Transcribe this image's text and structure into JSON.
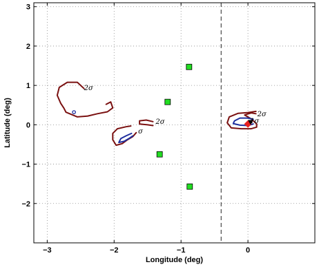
{
  "chart_data": {
    "type": "scatter",
    "title": "",
    "xlabel": "Longitude (deg)",
    "ylabel": "Latitude (deg)",
    "xlim": [
      -3.2,
      1.0
    ],
    "ylim": [
      -3.0,
      3.1
    ],
    "xticks": [
      -3,
      -2,
      -1,
      0
    ],
    "yticks": [
      -2,
      -1,
      0,
      1,
      2,
      3
    ],
    "tick_labels": {
      "x": [
        "−3",
        "−2",
        "−1",
        "0"
      ],
      "y": [
        "−2",
        "−1",
        "0",
        "1",
        "2",
        "3"
      ]
    },
    "grid": true,
    "grid_style": "dotted",
    "reference_line": {
      "x": -0.4,
      "style": "dashed",
      "color": "#555555"
    },
    "markers": {
      "squares": {
        "color": "#22dd22",
        "points": [
          {
            "x": -0.88,
            "y": 1.47
          },
          {
            "x": -1.2,
            "y": 0.58
          },
          {
            "x": -1.32,
            "y": -0.75
          },
          {
            "x": -0.87,
            "y": -1.57
          }
        ]
      },
      "circle": {
        "color": "#1f2f9e",
        "x": -2.6,
        "y": 0.32
      },
      "diamond": {
        "color": "#e82020",
        "x": 0.0,
        "y": 0.02
      },
      "triangle": {
        "color": "#000000",
        "x": 0.04,
        "y": 0.05
      }
    },
    "contours": [
      {
        "level": "2σ",
        "color": "#7a1010",
        "label": {
          "text": "2σ",
          "x": -2.45,
          "y": 0.88
        },
        "points": [
          [
            -2.45,
            0.92
          ],
          [
            -2.55,
            1.08
          ],
          [
            -2.7,
            1.08
          ],
          [
            -2.82,
            0.95
          ],
          [
            -2.85,
            0.75
          ],
          [
            -2.8,
            0.55
          ],
          [
            -2.75,
            0.42
          ],
          [
            -2.72,
            0.32
          ],
          [
            -2.55,
            0.2
          ],
          [
            -2.4,
            0.22
          ],
          [
            -2.25,
            0.28
          ],
          [
            -2.1,
            0.33
          ],
          [
            -2.02,
            0.43
          ],
          [
            -2.05,
            0.58
          ],
          [
            -2.12,
            0.52
          ]
        ]
      },
      {
        "level": "2σ",
        "color": "#7a1010",
        "label": null,
        "points": [
          [
            -1.75,
            -0.03
          ],
          [
            -1.82,
            -0.05
          ],
          [
            -1.95,
            -0.1
          ],
          [
            -2.02,
            -0.22
          ],
          [
            -2.02,
            -0.38
          ],
          [
            -1.97,
            -0.52
          ],
          [
            -1.88,
            -0.48
          ],
          [
            -1.8,
            -0.38
          ],
          [
            -1.72,
            -0.3
          ],
          [
            -1.67,
            -0.2
          ]
        ]
      },
      {
        "level": "1σ",
        "color": "#1f2f9e",
        "label": {
          "text": "σ",
          "x": -1.64,
          "y": -0.22
        },
        "points": [
          [
            -1.74,
            -0.22
          ],
          [
            -1.82,
            -0.28
          ],
          [
            -1.9,
            -0.35
          ],
          [
            -1.93,
            -0.45
          ],
          [
            -1.85,
            -0.42
          ],
          [
            -1.78,
            -0.35
          ],
          [
            -1.72,
            -0.28
          ]
        ]
      },
      {
        "level": "2σ",
        "color": "#7a1010",
        "label": {
          "text": "2σ",
          "x": -1.38,
          "y": 0.02
        },
        "points": [
          [
            -1.42,
            0.08
          ],
          [
            -1.52,
            0.12
          ],
          [
            -1.62,
            0.1
          ],
          [
            -1.62,
            0.02
          ],
          [
            -1.5,
            0.0
          ],
          [
            -1.42,
            -0.02
          ]
        ]
      },
      {
        "level": "2σ",
        "color": "#7a1010",
        "label": {
          "text": "2σ",
          "x": 0.14,
          "y": 0.22
        },
        "points": [
          [
            0.12,
            0.34
          ],
          [
            0.0,
            0.31
          ],
          [
            -0.15,
            0.29
          ],
          [
            -0.28,
            0.2
          ],
          [
            -0.31,
            0.05
          ],
          [
            -0.25,
            -0.08
          ],
          [
            -0.1,
            -0.1
          ],
          [
            0.05,
            -0.1
          ],
          [
            0.13,
            -0.06
          ],
          [
            0.13,
            0.02
          ],
          [
            0.05,
            0.15
          ],
          [
            -0.05,
            0.25
          ],
          [
            0.05,
            0.3
          ],
          [
            0.12,
            0.28
          ]
        ]
      },
      {
        "level": "1σ",
        "color": "#1f2f9e",
        "label": {
          "text": "1σ",
          "x": 0.03,
          "y": 0.04
        },
        "points": [
          [
            0.08,
            0.14
          ],
          [
            0.0,
            0.17
          ],
          [
            -0.12,
            0.17
          ],
          [
            -0.2,
            0.1
          ],
          [
            -0.22,
            0.03
          ],
          [
            -0.12,
            -0.01
          ],
          [
            0.0,
            -0.02
          ],
          [
            0.08,
            0.02
          ]
        ]
      }
    ]
  }
}
